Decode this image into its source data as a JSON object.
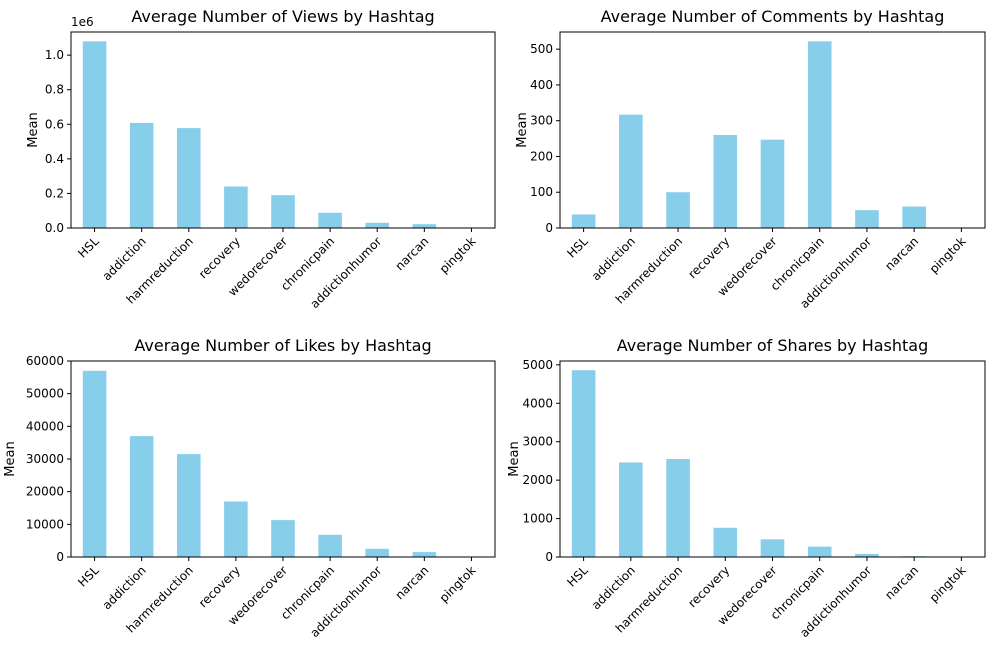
{
  "colors": {
    "bar": "#87ceeb",
    "axis": "#000000"
  },
  "chart_data": [
    {
      "type": "bar",
      "title": "Average Number of Views by Hashtag",
      "ylabel": "Mean",
      "offset_text": "1e6",
      "categories": [
        "HSL",
        "addiction",
        "harmreduction",
        "recovery",
        "wedorecover",
        "chronicpain",
        "addictionhumor",
        "narcan",
        "pingtok"
      ],
      "values": [
        1080000,
        608000,
        578000,
        240000,
        190000,
        88000,
        30000,
        22000,
        0
      ],
      "ylim": [
        0,
        1134000
      ],
      "yticks": [
        0,
        200000,
        400000,
        600000,
        800000,
        1000000
      ],
      "ytick_labels": [
        "0.0",
        "0.2",
        "0.4",
        "0.6",
        "0.8",
        "1.0"
      ]
    },
    {
      "type": "bar",
      "title": "Average Number of Comments by Hashtag",
      "ylabel": "Mean",
      "categories": [
        "HSL",
        "addiction",
        "harmreduction",
        "recovery",
        "wedorecover",
        "chronicpain",
        "addictionhumor",
        "narcan",
        "pingtok"
      ],
      "values": [
        38,
        317,
        100,
        260,
        247,
        522,
        50,
        60,
        0
      ],
      "ylim": [
        0,
        548
      ],
      "yticks": [
        0,
        100,
        200,
        300,
        400,
        500
      ],
      "ytick_labels": [
        "0",
        "100",
        "200",
        "300",
        "400",
        "500"
      ]
    },
    {
      "type": "bar",
      "title": "Average Number of Likes by Hashtag",
      "ylabel": "Mean",
      "categories": [
        "HSL",
        "addiction",
        "harmreduction",
        "recovery",
        "wedorecover",
        "chronicpain",
        "addictionhumor",
        "narcan",
        "pingtok"
      ],
      "values": [
        57000,
        37000,
        31500,
        17000,
        11300,
        6800,
        2500,
        1500,
        0
      ],
      "ylim": [
        0,
        60000
      ],
      "yticks": [
        0,
        10000,
        20000,
        30000,
        40000,
        50000,
        60000
      ],
      "ytick_labels": [
        "0",
        "10000",
        "20000",
        "30000",
        "40000",
        "50000",
        "60000"
      ]
    },
    {
      "type": "bar",
      "title": "Average Number of Shares by Hashtag",
      "ylabel": "Mean",
      "categories": [
        "HSL",
        "addiction",
        "harmreduction",
        "recovery",
        "wedorecover",
        "chronicpain",
        "addictionhumor",
        "narcan",
        "pingtok"
      ],
      "values": [
        4860,
        2460,
        2550,
        760,
        460,
        270,
        80,
        20,
        0
      ],
      "ylim": [
        0,
        5100
      ],
      "yticks": [
        0,
        1000,
        2000,
        3000,
        4000,
        5000
      ],
      "ytick_labels": [
        "0",
        "1000",
        "2000",
        "3000",
        "4000",
        "5000"
      ]
    }
  ]
}
